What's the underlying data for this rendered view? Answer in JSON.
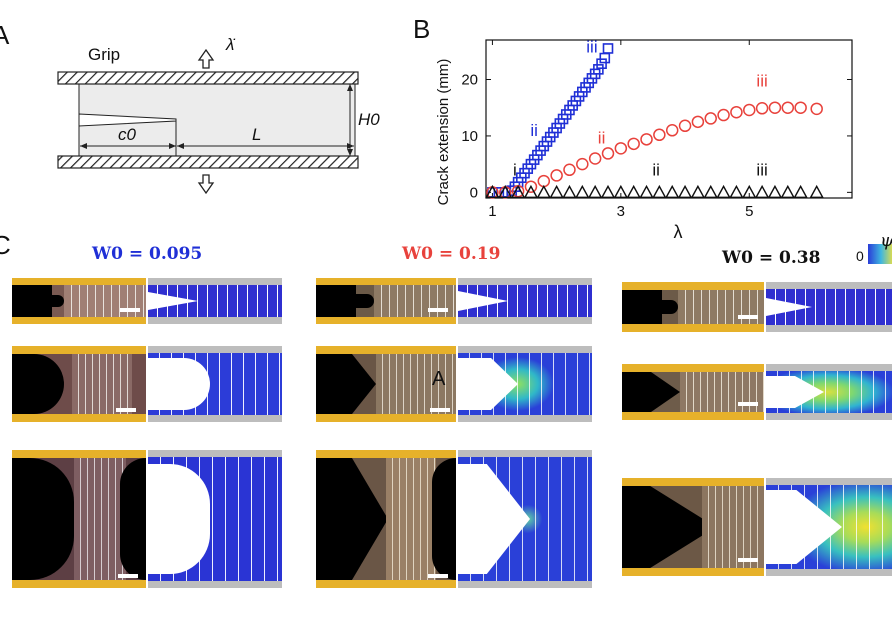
{
  "panels": {
    "a": {
      "letter": "A"
    },
    "b": {
      "letter": "B"
    },
    "c": {
      "letter": "C"
    }
  },
  "schematic": {
    "grip_label": "Grip",
    "rate_label": "λ̇",
    "crack_label": "c0",
    "length_label": "L",
    "height_label": "H0"
  },
  "chart_data": {
    "type": "scatter",
    "xlabel": "λ",
    "ylabel": "Crack extension (mm)",
    "xlim": [
      0.9,
      6.6
    ],
    "ylim": [
      -1,
      27
    ],
    "xticks": [
      1,
      3,
      5
    ],
    "yticks": [
      0,
      10,
      20
    ],
    "series": [
      {
        "color": "#1f2fd6",
        "marker": "square",
        "x": [
          1.0,
          1.1,
          1.2,
          1.3,
          1.35,
          1.4,
          1.45,
          1.5,
          1.55,
          1.6,
          1.65,
          1.7,
          1.75,
          1.8,
          1.85,
          1.9,
          1.95,
          2.0,
          2.05,
          2.1,
          2.15,
          2.2,
          2.25,
          2.3,
          2.35,
          2.4,
          2.45,
          2.5,
          2.55,
          2.6,
          2.65,
          2.7,
          2.75,
          2.8
        ],
        "y": [
          0.0,
          0.0,
          0.0,
          0.3,
          1.0,
          1.8,
          2.6,
          3.4,
          4.2,
          5.0,
          5.8,
          6.6,
          7.4,
          8.2,
          9.0,
          9.8,
          10.6,
          11.4,
          12.2,
          13.0,
          13.8,
          14.6,
          15.4,
          16.2,
          17.0,
          17.8,
          18.6,
          19.4,
          20.2,
          21.0,
          21.8,
          22.8,
          23.8,
          25.5
        ]
      },
      {
        "color": "#e8423c",
        "marker": "circle",
        "x": [
          1.0,
          1.2,
          1.4,
          1.6,
          1.8,
          2.0,
          2.2,
          2.4,
          2.6,
          2.8,
          3.0,
          3.2,
          3.4,
          3.6,
          3.8,
          4.0,
          4.2,
          4.4,
          4.6,
          4.8,
          5.0,
          5.2,
          5.4,
          5.6,
          5.8,
          6.05
        ],
        "y": [
          0.0,
          0.0,
          0.2,
          1.0,
          2.0,
          3.0,
          4.0,
          5.0,
          6.0,
          6.9,
          7.8,
          8.6,
          9.4,
          10.2,
          11.0,
          11.8,
          12.5,
          13.1,
          13.7,
          14.2,
          14.6,
          14.9,
          15.0,
          15.0,
          15.0,
          14.8
        ]
      },
      {
        "color": "#111111",
        "marker": "triangle",
        "x": [
          1.0,
          1.2,
          1.4,
          1.6,
          1.8,
          2.0,
          2.2,
          2.4,
          2.6,
          2.8,
          3.0,
          3.2,
          3.4,
          3.6,
          3.8,
          4.0,
          4.2,
          4.4,
          4.6,
          4.8,
          5.0,
          5.2,
          5.4,
          5.6,
          5.8,
          6.05
        ],
        "y": [
          0.0,
          0.0,
          0.0,
          0.0,
          0.0,
          0.0,
          0.0,
          0.0,
          0.0,
          0.0,
          0.0,
          0.0,
          0.0,
          0.0,
          0.0,
          0.0,
          0.0,
          0.0,
          0.0,
          0.0,
          0.0,
          0.0,
          0.0,
          0.0,
          0.0,
          0.0
        ]
      }
    ],
    "annotations": [
      {
        "text": "iii",
        "x": 2.55,
        "y": 24.8,
        "color": "#1f2fd6"
      },
      {
        "text": "ii",
        "x": 1.65,
        "y": 10.0,
        "color": "#1f2fd6"
      },
      {
        "text": "i",
        "x": 1.35,
        "y": 3.0,
        "color": "#111111"
      },
      {
        "text": "iii",
        "x": 5.2,
        "y": 18.8,
        "color": "#e8423c"
      },
      {
        "text": "ii",
        "x": 2.7,
        "y": 8.7,
        "color": "#e8423c"
      },
      {
        "text": "ii",
        "x": 3.55,
        "y": 3.0,
        "color": "#111111"
      },
      {
        "text": "iii",
        "x": 5.2,
        "y": 3.0,
        "color": "#111111"
      }
    ]
  },
  "panel_c": {
    "columns": [
      {
        "label": "W0 = 0.095",
        "color": "#1f2fd6"
      },
      {
        "label": "W0 = 0.19",
        "color": "#e8423c"
      },
      {
        "label": "W0 = 0.38",
        "color": "#111111"
      }
    ],
    "colorbar_min": "0",
    "colorbar_symbol": "ψ",
    "marker_label": "A"
  }
}
